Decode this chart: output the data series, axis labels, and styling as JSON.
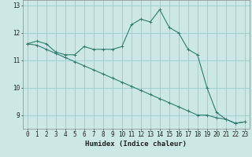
{
  "xlabel": "Humidex (Indice chaleur)",
  "background_color": "#cce8e4",
  "grid_color": "#99cccc",
  "line_color": "#2e7d6e",
  "x_values": [
    0,
    1,
    2,
    3,
    4,
    5,
    6,
    7,
    8,
    9,
    10,
    11,
    12,
    13,
    14,
    15,
    16,
    17,
    18,
    19,
    20,
    21,
    22,
    23
  ],
  "series1": [
    11.6,
    11.7,
    11.6,
    11.3,
    11.2,
    11.2,
    11.5,
    11.4,
    11.4,
    11.4,
    11.5,
    12.3,
    12.5,
    12.4,
    12.85,
    12.2,
    12.0,
    11.4,
    11.2,
    10.0,
    9.1,
    8.85,
    8.7,
    8.75
  ],
  "series2": [
    11.6,
    11.55,
    11.4,
    11.25,
    11.1,
    10.95,
    10.8,
    10.65,
    10.5,
    10.35,
    10.2,
    10.05,
    9.9,
    9.75,
    9.6,
    9.45,
    9.3,
    9.15,
    9.0,
    9.0,
    8.9,
    8.85,
    8.7,
    8.75
  ],
  "ylim": [
    8.5,
    13.2
  ],
  "yticks": [
    9,
    10,
    11,
    12,
    13
  ],
  "xticks": [
    0,
    1,
    2,
    3,
    4,
    5,
    6,
    7,
    8,
    9,
    10,
    11,
    12,
    13,
    14,
    15,
    16,
    17,
    18,
    19,
    20,
    21,
    22,
    23
  ],
  "tick_fontsize": 5.5,
  "label_fontsize": 6.5
}
